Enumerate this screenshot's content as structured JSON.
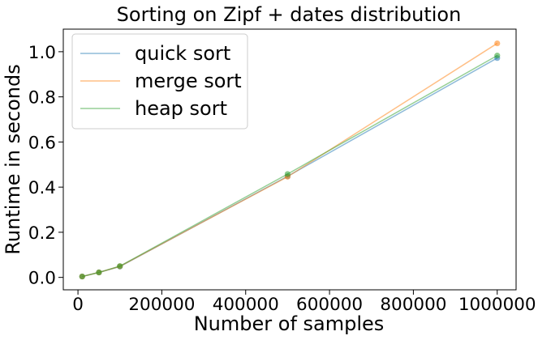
{
  "chart_data": {
    "type": "line",
    "title": "Sorting on Zipf + dates distribution",
    "xlabel": "Number of samples",
    "ylabel": "Runtime in seconds",
    "x": [
      10000,
      50000,
      100000,
      500000,
      1000000
    ],
    "xlim": [
      -35000,
      1045000
    ],
    "ylim": [
      -0.055,
      1.1
    ],
    "xticks": [
      0,
      200000,
      400000,
      600000,
      800000,
      1000000
    ],
    "xtick_labels": [
      "0",
      "200000",
      "400000",
      "600000",
      "800000",
      "1000000"
    ],
    "yticks": [
      0.0,
      0.2,
      0.4,
      0.6,
      0.8,
      1.0
    ],
    "ytick_labels": [
      "0.0",
      "0.2",
      "0.4",
      "0.6",
      "0.8",
      "1.0"
    ],
    "grid": false,
    "legend_position": "top-left",
    "series": [
      {
        "name": "quick sort",
        "color": "#1f77b4",
        "values": [
          0.004,
          0.022,
          0.048,
          0.448,
          0.972
        ]
      },
      {
        "name": "merge sort",
        "color": "#ff7f0e",
        "values": [
          0.004,
          0.022,
          0.049,
          0.446,
          1.037
        ]
      },
      {
        "name": "heap sort",
        "color": "#2ca02c",
        "values": [
          0.004,
          0.022,
          0.05,
          0.458,
          0.983
        ]
      }
    ]
  }
}
